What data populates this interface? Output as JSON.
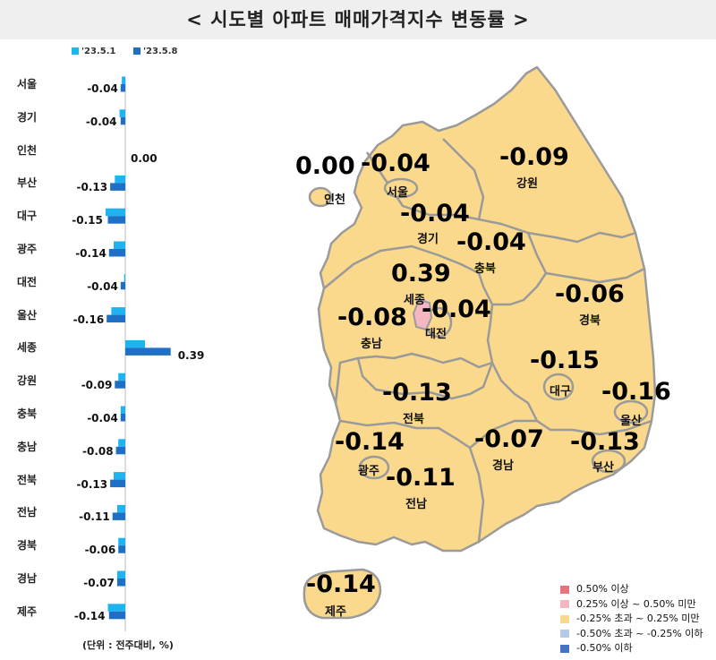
{
  "title": "< 시도별 아파트 매매가격지수 변동률 >",
  "unit_note": "(단위 : 전주대비, %)",
  "chart_data": {
    "type": "bar",
    "orientation": "horizontal",
    "categories": [
      "서울",
      "경기",
      "인천",
      "부산",
      "대구",
      "광주",
      "대전",
      "울산",
      "세종",
      "강원",
      "충북",
      "충남",
      "전북",
      "전남",
      "경북",
      "경남",
      "제주"
    ],
    "series": [
      {
        "name": "'23.5.1",
        "color": "#1fb4f0",
        "values": [
          -0.03,
          -0.05,
          0.0,
          -0.09,
          -0.17,
          -0.1,
          -0.01,
          -0.12,
          0.17,
          -0.06,
          -0.04,
          -0.06,
          -0.1,
          -0.07,
          -0.06,
          -0.07,
          -0.15
        ]
      },
      {
        "name": "'23.5.8",
        "color": "#1f6fc4",
        "values": [
          -0.04,
          -0.04,
          0.0,
          -0.13,
          -0.15,
          -0.14,
          -0.04,
          -0.16,
          0.39,
          -0.09,
          -0.04,
          -0.08,
          -0.13,
          -0.11,
          -0.06,
          -0.07,
          -0.14
        ]
      }
    ],
    "value_labels": [
      "-0.04",
      "-0.04",
      "0.00",
      "-0.13",
      "-0.15",
      "-0.14",
      "-0.04",
      "-0.16",
      "0.39",
      "-0.09",
      "-0.04",
      "-0.08",
      "-0.13",
      "-0.11",
      "-0.06",
      "-0.07",
      "-0.14"
    ]
  },
  "map": {
    "regions": [
      {
        "name": "인천",
        "value": "0.00"
      },
      {
        "name": "서울",
        "value": "-0.04"
      },
      {
        "name": "강원",
        "value": "-0.09"
      },
      {
        "name": "경기",
        "value": "-0.04"
      },
      {
        "name": "충북",
        "value": "-0.04"
      },
      {
        "name": "세종",
        "value": "0.39"
      },
      {
        "name": "경북",
        "value": "-0.06"
      },
      {
        "name": "충남",
        "value": "-0.08"
      },
      {
        "name": "대전",
        "value": "-0.04"
      },
      {
        "name": "대구",
        "value": "-0.15"
      },
      {
        "name": "울산",
        "value": "-0.16"
      },
      {
        "name": "전북",
        "value": "-0.13"
      },
      {
        "name": "광주",
        "value": "-0.14"
      },
      {
        "name": "경남",
        "value": "-0.07"
      },
      {
        "name": "부산",
        "value": "-0.13"
      },
      {
        "name": "전남",
        "value": "-0.11"
      },
      {
        "name": "제주",
        "value": "-0.14"
      }
    ],
    "fill_colors": {
      "base": "#fad98c",
      "sejong": "#f4b6bf",
      "border": "#9a9a9a"
    }
  },
  "legend": [
    {
      "label": "0.50% 이상",
      "color": "#e8737f"
    },
    {
      "label": "0.25% 이상 ~ 0.50% 미만",
      "color": "#f4b6bf"
    },
    {
      "label": "-0.25% 초과 ~ 0.25% 미만",
      "color": "#fad98c"
    },
    {
      "label": "-0.50% 초과 ~ -0.25% 이하",
      "color": "#b7c9ea"
    },
    {
      "label": "-0.50% 이하",
      "color": "#4472c4"
    }
  ]
}
